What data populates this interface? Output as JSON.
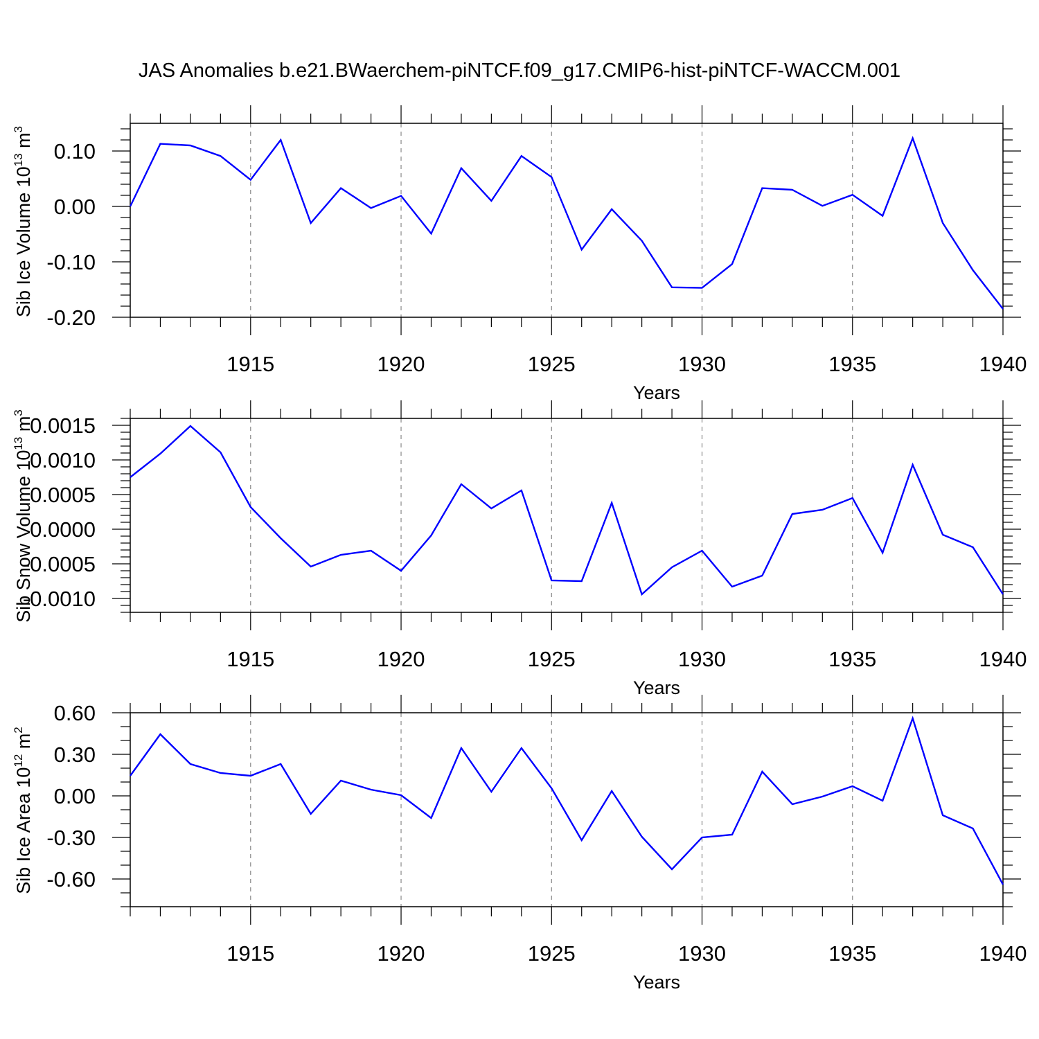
{
  "title": "JAS Anomalies b.e21.BWaerchem-piNTCF.f09_g17.CMIP6-hist-piNTCF-WACCM.001",
  "colors": {
    "line": "#0000ff",
    "axis": "#000000",
    "grid": "#888888"
  },
  "chart_data": [
    {
      "type": "line",
      "ylabel": "Sib Ice Volume 10^13 m^3",
      "ylabel_parts": [
        "Sib Ice Volume 10",
        "13",
        " m",
        "3"
      ],
      "xlabel": "Years",
      "xlim": [
        1911,
        1940
      ],
      "ylim": [
        -0.2,
        0.15
      ],
      "yticks": [
        -0.2,
        -0.1,
        0.0,
        0.1
      ],
      "ytick_labels": [
        "-0.20",
        "-0.10",
        "0.00",
        "0.10"
      ],
      "xticks": [
        1915,
        1920,
        1925,
        1930,
        1935,
        1940
      ],
      "xtick_labels": [
        "1915",
        "1920",
        "1925",
        "1930",
        "1935",
        "1940"
      ],
      "grid_x": [
        1915,
        1920,
        1925,
        1930,
        1935
      ],
      "x": [
        1911,
        1912,
        1913,
        1914,
        1915,
        1916,
        1917,
        1918,
        1919,
        1920,
        1921,
        1922,
        1923,
        1924,
        1925,
        1926,
        1927,
        1928,
        1929,
        1930,
        1931,
        1932,
        1933,
        1934,
        1935,
        1936,
        1937,
        1938,
        1939,
        1940
      ],
      "values": [
        0.0,
        0.113,
        0.11,
        0.091,
        0.048,
        0.12,
        -0.03,
        0.033,
        -0.003,
        0.019,
        -0.049,
        0.069,
        0.01,
        0.091,
        0.053,
        -0.078,
        -0.005,
        -0.062,
        -0.146,
        -0.147,
        -0.104,
        0.033,
        0.03,
        0.001,
        0.021,
        -0.017,
        0.123,
        -0.03,
        -0.115,
        -0.185
      ]
    },
    {
      "type": "line",
      "ylabel": "Sib Snow Volume 10^13 m^3",
      "ylabel_parts": [
        "Sib Snow Volume 10",
        "13",
        " m",
        "3"
      ],
      "xlabel": "Years",
      "xlim": [
        1911,
        1940
      ],
      "ylim": [
        -0.0012,
        0.0016
      ],
      "yticks": [
        -0.001,
        -0.0005,
        0.0,
        0.0005,
        0.001,
        0.0015
      ],
      "ytick_labels": [
        "-0.0010",
        "-0.0005",
        "0.0000",
        "0.0005",
        "0.0010",
        "0.0015"
      ],
      "xticks": [
        1915,
        1920,
        1925,
        1930,
        1935,
        1940
      ],
      "xtick_labels": [
        "1915",
        "1920",
        "1925",
        "1930",
        "1935",
        "1940"
      ],
      "grid_x": [
        1915,
        1920,
        1925,
        1930,
        1935
      ],
      "x": [
        1911,
        1912,
        1913,
        1914,
        1915,
        1916,
        1917,
        1918,
        1919,
        1920,
        1921,
        1922,
        1923,
        1924,
        1925,
        1926,
        1927,
        1928,
        1929,
        1930,
        1931,
        1932,
        1933,
        1934,
        1935,
        1936,
        1937,
        1938,
        1939,
        1940
      ],
      "values": [
        0.00075,
        0.00109,
        0.00149,
        0.00111,
        0.00032,
        -0.00013,
        -0.00054,
        -0.00037,
        -0.00031,
        -0.0006,
        -9e-05,
        0.00065,
        0.0003,
        0.00056,
        -0.00074,
        -0.00075,
        0.00038,
        -0.00094,
        -0.00055,
        -0.00031,
        -0.00083,
        -0.00067,
        0.00022,
        0.00028,
        0.00045,
        -0.00034,
        0.00093,
        -8e-05,
        -0.00026,
        -0.00094
      ]
    },
    {
      "type": "line",
      "ylabel": "Sib Ice Area 10^12 m^2",
      "ylabel_parts": [
        "Sib Ice Area 10",
        "12",
        " m",
        "2"
      ],
      "xlabel": "Years",
      "xlim": [
        1911,
        1940
      ],
      "ylim": [
        -0.8,
        0.6
      ],
      "yticks": [
        -0.6,
        -0.3,
        0.0,
        0.3,
        0.6
      ],
      "ytick_labels": [
        "-0.60",
        "-0.30",
        "0.00",
        "0.30",
        "0.60"
      ],
      "xticks": [
        1915,
        1920,
        1925,
        1930,
        1935,
        1940
      ],
      "xtick_labels": [
        "1915",
        "1920",
        "1925",
        "1930",
        "1935",
        "1940"
      ],
      "grid_x": [
        1915,
        1920,
        1925,
        1930,
        1935
      ],
      "x": [
        1911,
        1912,
        1913,
        1914,
        1915,
        1916,
        1917,
        1918,
        1919,
        1920,
        1921,
        1922,
        1923,
        1924,
        1925,
        1926,
        1927,
        1928,
        1929,
        1930,
        1931,
        1932,
        1933,
        1934,
        1935,
        1936,
        1937,
        1938,
        1939,
        1940
      ],
      "values": [
        0.145,
        0.445,
        0.23,
        0.165,
        0.145,
        0.23,
        -0.13,
        0.11,
        0.045,
        0.005,
        -0.16,
        0.345,
        0.03,
        0.345,
        0.055,
        -0.32,
        0.035,
        -0.295,
        -0.53,
        -0.3,
        -0.28,
        0.175,
        -0.06,
        -0.005,
        0.07,
        -0.035,
        0.56,
        -0.14,
        -0.235,
        -0.64
      ]
    }
  ]
}
